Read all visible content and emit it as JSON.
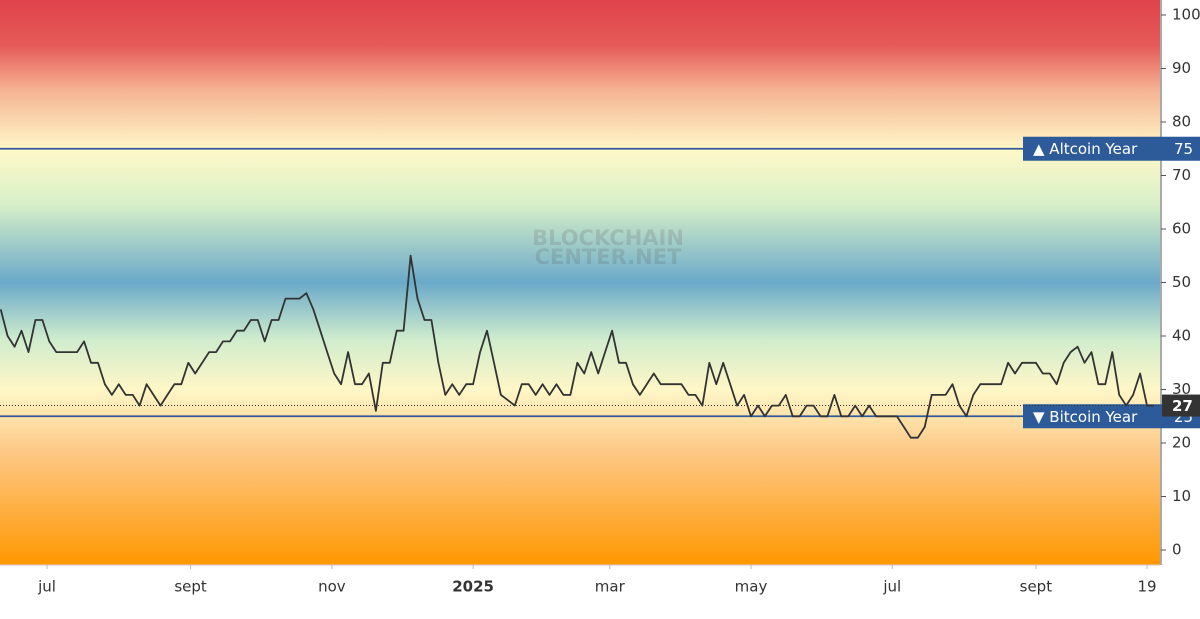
{
  "chart_data": {
    "type": "line",
    "watermark": [
      "BLOCKCHAIN",
      "CENTER.NET"
    ],
    "x": [
      -20,
      -17,
      -14,
      -11,
      -8,
      -5,
      -2,
      1,
      4,
      7,
      10,
      13,
      16,
      19,
      22,
      25,
      28,
      31,
      34,
      37,
      40,
      43,
      46,
      49,
      52,
      55,
      58,
      61,
      64,
      67,
      70,
      73,
      76,
      79,
      82,
      85,
      88,
      91,
      94,
      97,
      100,
      103,
      106,
      109,
      112,
      115,
      118,
      121,
      124,
      127,
      130,
      133,
      136,
      139,
      142,
      145,
      148,
      151,
      154,
      157,
      160,
      163,
      166,
      169,
      172,
      175,
      178,
      181,
      184,
      187,
      190,
      193,
      196,
      199,
      202,
      205,
      208,
      211,
      214,
      217,
      220,
      223,
      226,
      229,
      232,
      235,
      238,
      241,
      244,
      247,
      250,
      253,
      256,
      259,
      262,
      265,
      268,
      271,
      274,
      277,
      280,
      283,
      286,
      289,
      292,
      295,
      298,
      301,
      304,
      307,
      310,
      313,
      316,
      319,
      322,
      325,
      328,
      331,
      334,
      337,
      340,
      343,
      346,
      349,
      352,
      355,
      358,
      361,
      364,
      367,
      370,
      373,
      376,
      379,
      382,
      385,
      388,
      391,
      394,
      397,
      400,
      403,
      406,
      409,
      412,
      415,
      418,
      421,
      424,
      427,
      430,
      433,
      436,
      439,
      442,
      445,
      448,
      451,
      454,
      457,
      460,
      463,
      466,
      469,
      472,
      475,
      478
    ],
    "series": [
      {
        "color": "#333333",
        "values": [
          45,
          40,
          38,
          41,
          37,
          43,
          43,
          39,
          37,
          37,
          37,
          37,
          39,
          35,
          35,
          31,
          29,
          31,
          29,
          29,
          27,
          31,
          29,
          27,
          29,
          31,
          31,
          35,
          33,
          35,
          37,
          37,
          39,
          39,
          41,
          41,
          43,
          43,
          39,
          43,
          43,
          47,
          47,
          47,
          48,
          45,
          41,
          37,
          33,
          31,
          37,
          31,
          31,
          33,
          26,
          35,
          35,
          41,
          41,
          55,
          47,
          43,
          43,
          35,
          29,
          31,
          29,
          31,
          31,
          37,
          41,
          35,
          29,
          28,
          27,
          31,
          31,
          29,
          31,
          29,
          31,
          29,
          29,
          35,
          33,
          37,
          33,
          37,
          41,
          35,
          35,
          31,
          29,
          31,
          33,
          31,
          31,
          31,
          31,
          29,
          29,
          27,
          35,
          31,
          35,
          31,
          27,
          29,
          25,
          27,
          25,
          27,
          27,
          29,
          25,
          25,
          27,
          27,
          25,
          25,
          29,
          25,
          25,
          27,
          25,
          27,
          25,
          25,
          25,
          25,
          23,
          21,
          21,
          23,
          29,
          29,
          29,
          31,
          27,
          25,
          29,
          31,
          31,
          31,
          31,
          35,
          33,
          35,
          35,
          35,
          33,
          33,
          31,
          35,
          37,
          38,
          35,
          37,
          31,
          31,
          37,
          29,
          27,
          29,
          33,
          27,
          27
        ]
      }
    ],
    "thresholds": [
      {
        "label": "▲ Altcoin Year",
        "value": 75,
        "color": "#2d5b9a"
      },
      {
        "label": "▼ Bitcoin Year",
        "value": 25,
        "color": "#2d5b9a"
      }
    ],
    "current": 27,
    "xlim": [
      -20.3,
      480.6
    ],
    "xticks": [
      {
        "value": 0,
        "label": "jul"
      },
      {
        "value": 62,
        "label": "sept"
      },
      {
        "value": 123,
        "label": "nov"
      },
      {
        "value": 184,
        "label": "2025"
      },
      {
        "value": 243,
        "label": "mar"
      },
      {
        "value": 304,
        "label": "may"
      },
      {
        "value": 365,
        "label": "jul"
      },
      {
        "value": 427,
        "label": "sept"
      },
      {
        "value": 475,
        "label": "19"
      }
    ],
    "ylim": [
      -2.8,
      102.8
    ],
    "yticks": [
      0,
      10,
      20,
      30,
      40,
      50,
      60,
      70,
      80,
      90,
      100
    ]
  }
}
